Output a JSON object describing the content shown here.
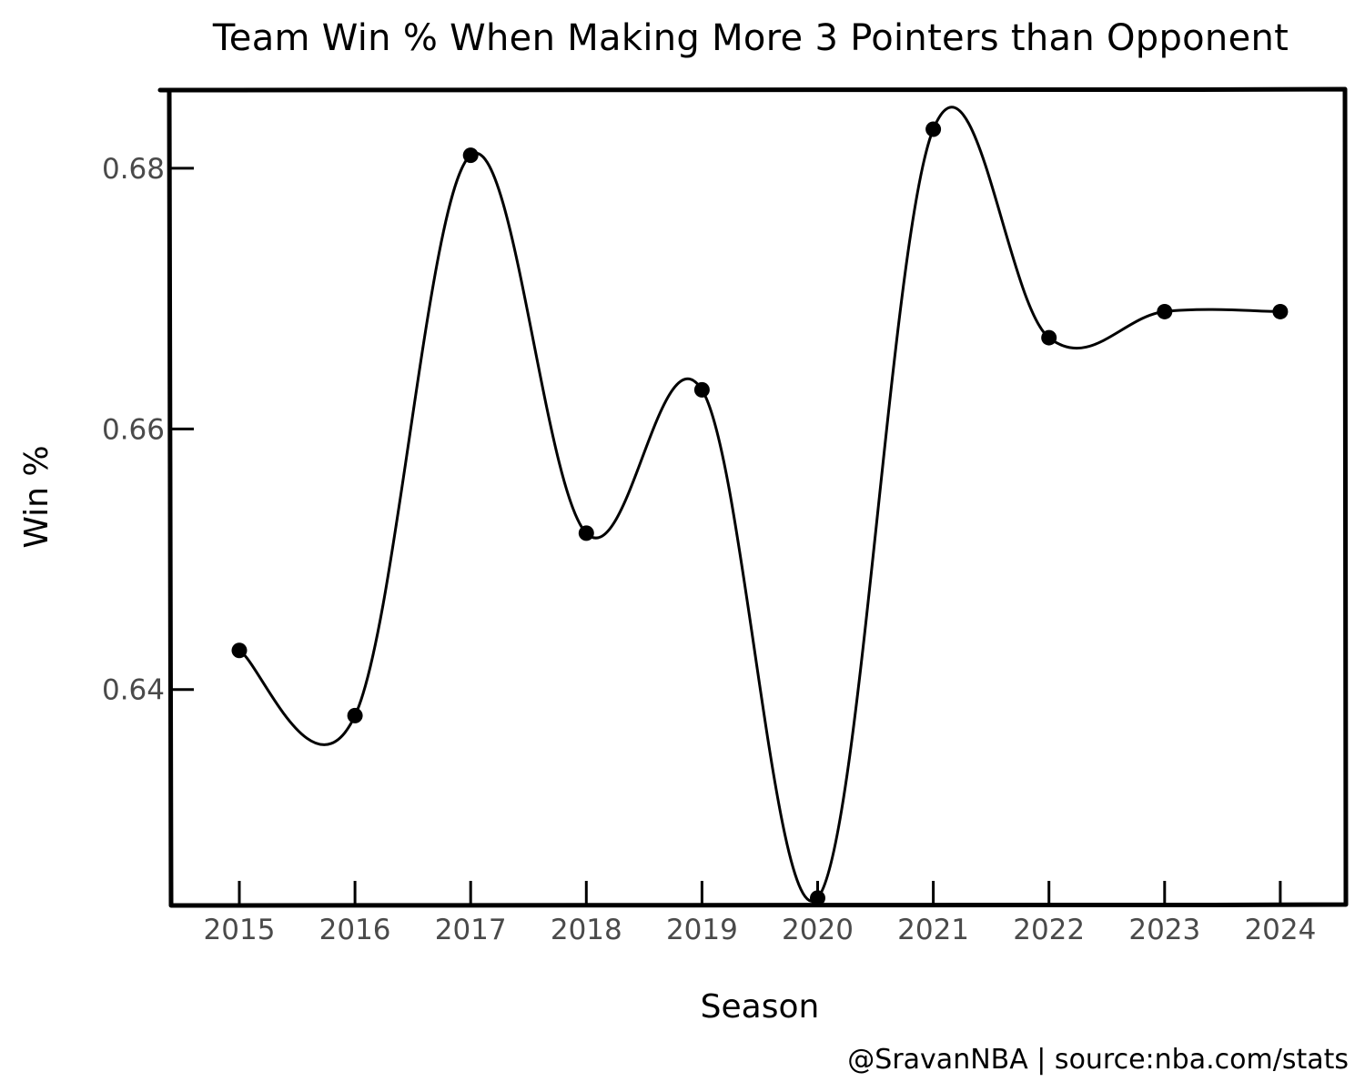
{
  "chart_data": {
    "type": "line",
    "title": "Team Win % When Making More 3 Pointers than Opponent",
    "xlabel": "Season",
    "ylabel": "Win %",
    "categories": [
      "2015",
      "2016",
      "2017",
      "2018",
      "2019",
      "2020",
      "2021",
      "2022",
      "2023",
      "2024"
    ],
    "x_ticks": [
      "2015",
      "2016",
      "2017",
      "2018",
      "2019",
      "2020",
      "2021",
      "2022",
      "2023",
      "2024"
    ],
    "y_ticks": [
      0.64,
      0.66,
      0.68
    ],
    "y_tick_labels": [
      "0.64",
      "0.66",
      "0.68"
    ],
    "ylim": [
      0.6235,
      0.686
    ],
    "grid": false,
    "series": [
      {
        "values": [
          0.643,
          0.638,
          0.681,
          0.652,
          0.663,
          0.624,
          0.683,
          0.667,
          0.669,
          0.669
        ],
        "color": "#000000"
      }
    ],
    "credit": "@SravanNBA | source:nba.com/stats"
  }
}
